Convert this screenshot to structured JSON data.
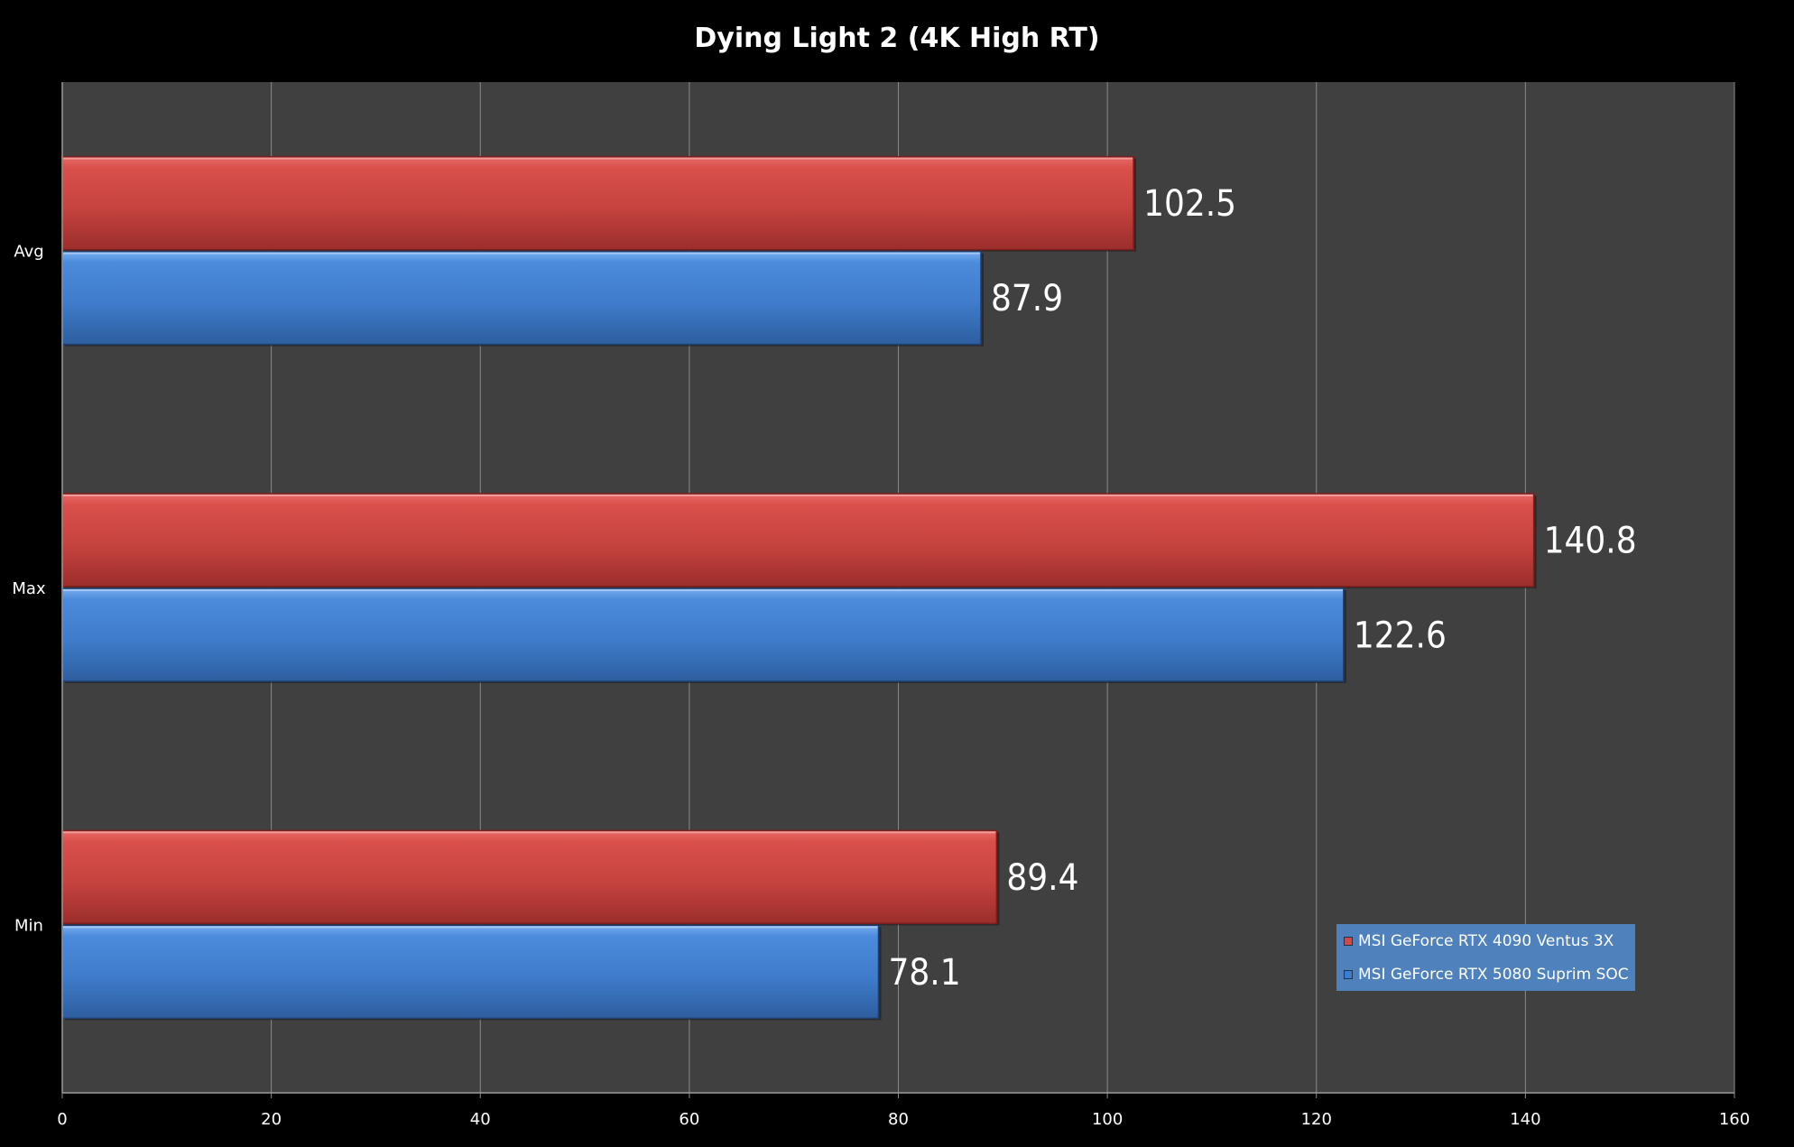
{
  "chart_data": {
    "type": "bar",
    "orientation": "horizontal",
    "title": "Dying Light 2 (4K High RT)",
    "categories": [
      "Avg",
      "Max",
      "Min"
    ],
    "series": [
      {
        "name": "MSI GeForce RTX 4090 Ventus 3X",
        "color": "#c0504d",
        "values": [
          102.5,
          140.8,
          89.4
        ],
        "labels": [
          "102.5",
          "140.8",
          "89.4"
        ]
      },
      {
        "name": "MSI GeForce RTX 5080 Suprim SOC",
        "color": "#4f81bd",
        "values": [
          87.9,
          122.6,
          78.1
        ],
        "labels": [
          "87.9",
          "122.6",
          "78.1"
        ]
      }
    ],
    "xlim": [
      0,
      160
    ],
    "xticks": [
      "0",
      "20",
      "40",
      "60",
      "80",
      "100",
      "120",
      "140",
      "160"
    ],
    "grid": true,
    "legend_position": "bottom-right",
    "background_color": "#404040",
    "page_color": "#000000"
  }
}
